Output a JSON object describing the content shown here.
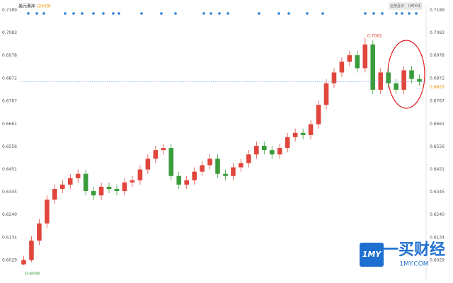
{
  "chart_data": {
    "type": "candlestick",
    "title": "美元离岸",
    "code": "(2409)",
    "buttons": [
      "全部显示",
      "分时K线"
    ],
    "ylim": [
      0.594,
      0.721
    ],
    "yticks": [
      0.6029,
      0.6134,
      {
        "value": 0.624,
        "label": "0.6240"
      },
      0.6345,
      0.6451,
      0.6556,
      0.6661,
      0.6767,
      0.6872,
      0.6978,
      0.7083,
      0.7189
    ],
    "grid": false,
    "up_color": "#e0463c",
    "down_color": "#3a9c3a",
    "high_label": "0.7062",
    "low_label": "0.6006",
    "last_label": "0.6857",
    "watermark": {
      "logo": "1MY",
      "name": "一买财经",
      "site": "1MY.COM"
    },
    "series": [
      {
        "values": [
          [
            0.601,
            0.605,
            0.6006,
            0.603
          ],
          [
            0.603,
            0.614,
            0.602,
            0.612
          ],
          [
            0.612,
            0.622,
            0.61,
            0.62
          ],
          [
            0.62,
            0.633,
            0.618,
            0.631
          ],
          [
            0.631,
            0.638,
            0.629,
            0.636
          ],
          [
            0.636,
            0.64,
            0.634,
            0.638
          ],
          [
            0.638,
            0.643,
            0.636,
            0.641
          ],
          [
            0.641,
            0.645,
            0.639,
            0.643
          ],
          [
            0.643,
            0.645,
            0.633,
            0.635
          ],
          [
            0.635,
            0.637,
            0.631,
            0.633
          ],
          [
            0.633,
            0.639,
            0.631,
            0.637
          ],
          [
            0.637,
            0.639,
            0.634,
            0.636
          ],
          [
            0.636,
            0.638,
            0.633,
            0.635
          ],
          [
            0.635,
            0.641,
            0.633,
            0.639
          ],
          [
            0.639,
            0.642,
            0.637,
            0.64
          ],
          [
            0.64,
            0.647,
            0.638,
            0.645
          ],
          [
            0.645,
            0.652,
            0.643,
            0.65
          ],
          [
            0.65,
            0.656,
            0.648,
            0.654
          ],
          [
            0.654,
            0.657,
            0.652,
            0.655
          ],
          [
            0.655,
            0.657,
            0.64,
            0.642
          ],
          [
            0.642,
            0.644,
            0.636,
            0.638
          ],
          [
            0.638,
            0.642,
            0.636,
            0.64
          ],
          [
            0.64,
            0.646,
            0.638,
            0.644
          ],
          [
            0.644,
            0.649,
            0.642,
            0.647
          ],
          [
            0.647,
            0.652,
            0.645,
            0.65
          ],
          [
            0.65,
            0.652,
            0.641,
            0.643
          ],
          [
            0.643,
            0.645,
            0.64,
            0.642
          ],
          [
            0.642,
            0.648,
            0.64,
            0.646
          ],
          [
            0.646,
            0.65,
            0.644,
            0.648
          ],
          [
            0.648,
            0.654,
            0.646,
            0.652
          ],
          [
            0.652,
            0.658,
            0.65,
            0.656
          ],
          [
            0.656,
            0.658,
            0.652,
            0.654
          ],
          [
            0.654,
            0.656,
            0.65,
            0.652
          ],
          [
            0.652,
            0.657,
            0.65,
            0.655
          ],
          [
            0.655,
            0.662,
            0.653,
            0.66
          ],
          [
            0.66,
            0.664,
            0.658,
            0.662
          ],
          [
            0.662,
            0.664,
            0.659,
            0.661
          ],
          [
            0.661,
            0.668,
            0.659,
            0.666
          ],
          [
            0.666,
            0.677,
            0.664,
            0.675
          ],
          [
            0.675,
            0.687,
            0.673,
            0.685
          ],
          [
            0.685,
            0.692,
            0.683,
            0.69
          ],
          [
            0.69,
            0.697,
            0.688,
            0.695
          ],
          [
            0.695,
            0.7,
            0.693,
            0.698
          ],
          [
            0.698,
            0.7,
            0.69,
            0.692
          ],
          [
            0.692,
            0.7062,
            0.69,
            0.703
          ],
          [
            0.703,
            0.705,
            0.68,
            0.682
          ],
          [
            0.682,
            0.692,
            0.68,
            0.69
          ],
          [
            0.69,
            0.692,
            0.683,
            0.685
          ],
          [
            0.685,
            0.687,
            0.68,
            0.682
          ],
          [
            0.682,
            0.693,
            0.68,
            0.691
          ],
          [
            0.691,
            0.693,
            0.685,
            0.687
          ],
          [
            0.687,
            0.689,
            0.684,
            0.6857
          ]
        ]
      }
    ]
  }
}
